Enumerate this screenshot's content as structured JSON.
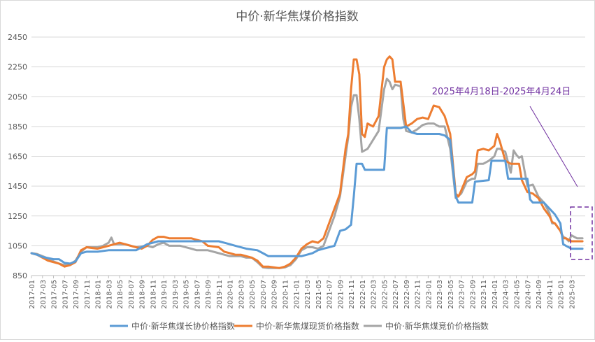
{
  "chart_data": {
    "type": "line",
    "title": "中价·新华焦煤价格指数",
    "xlabel": "",
    "ylabel": "",
    "ylim": [
      850,
      2450
    ],
    "yticks": [
      850,
      1050,
      1250,
      1450,
      1650,
      1850,
      2050,
      2250,
      2450
    ],
    "x_tick_labels": [
      "2017-01",
      "2017-03",
      "2017-05",
      "2017-07",
      "2017-09",
      "2017-11",
      "2018-01",
      "2018-03",
      "2018-05",
      "2018-07",
      "2018-09",
      "2018-11",
      "2019-01",
      "2019-03",
      "2019-05",
      "2019-07",
      "2019-09",
      "2019-11",
      "2020-01",
      "2020-03",
      "2020-05",
      "2020-07",
      "2020-09",
      "2020-11",
      "2021-01",
      "2021-03",
      "2021-05",
      "2021-07",
      "2021-09",
      "2021-11",
      "2022-01",
      "2022-03",
      "2022-05",
      "2022-07",
      "2022-09",
      "2022-11",
      "2023-01",
      "2023-03",
      "2023-05",
      "2023-07",
      "2023-09",
      "2023-11",
      "2024-01",
      "2024-03",
      "2024-05",
      "2024-07",
      "2024-09",
      "2024-11",
      "2025-01",
      "2025-03"
    ],
    "x_unit": "months since 2017-01",
    "x_max": 100.5,
    "grid": "horizontal",
    "legend_position": "bottom",
    "annotation": {
      "text": "2025年4月18日-2025年4月24日",
      "color": "#7030a0"
    },
    "series": [
      {
        "name": "中价·新华焦煤长协价格指数",
        "color": "#5b9bd5",
        "points": [
          [
            0,
            1000
          ],
          [
            1,
            990
          ],
          [
            2,
            975
          ],
          [
            4,
            960
          ],
          [
            5,
            960
          ],
          [
            6,
            935
          ],
          [
            7,
            930
          ],
          [
            8,
            945
          ],
          [
            9,
            1000
          ],
          [
            10,
            1010
          ],
          [
            12,
            1010
          ],
          [
            14,
            1020
          ],
          [
            18,
            1020
          ],
          [
            19,
            1020
          ],
          [
            20,
            1040
          ],
          [
            21,
            1060
          ],
          [
            23,
            1080
          ],
          [
            26,
            1080
          ],
          [
            30,
            1080
          ],
          [
            34,
            1080
          ],
          [
            35,
            1070
          ],
          [
            36,
            1060
          ],
          [
            37,
            1050
          ],
          [
            39,
            1030
          ],
          [
            41,
            1020
          ],
          [
            42,
            1000
          ],
          [
            43,
            980
          ],
          [
            47,
            980
          ],
          [
            49,
            980
          ],
          [
            50,
            990
          ],
          [
            51,
            1000
          ],
          [
            52,
            1020
          ],
          [
            53,
            1030
          ],
          [
            54,
            1040
          ],
          [
            55,
            1050
          ],
          [
            56,
            1150
          ],
          [
            57,
            1160
          ],
          [
            58,
            1190
          ],
          [
            58.5,
            1380
          ],
          [
            59,
            1600
          ],
          [
            60,
            1600
          ],
          [
            60.5,
            1560
          ],
          [
            62,
            1560
          ],
          [
            64,
            1560
          ],
          [
            64.5,
            1840
          ],
          [
            67,
            1840
          ],
          [
            68,
            1850
          ],
          [
            69,
            1810
          ],
          [
            70,
            1800
          ],
          [
            74,
            1800
          ],
          [
            75,
            1790
          ],
          [
            76,
            1760
          ],
          [
            77,
            1380
          ],
          [
            77.5,
            1340
          ],
          [
            80,
            1340
          ],
          [
            80.5,
            1480
          ],
          [
            83,
            1490
          ],
          [
            83.5,
            1620
          ],
          [
            86,
            1620
          ],
          [
            86.5,
            1500
          ],
          [
            90,
            1500
          ],
          [
            90.5,
            1360
          ],
          [
            91,
            1340
          ],
          [
            92,
            1340
          ],
          [
            93,
            1340
          ],
          [
            94,
            1300
          ],
          [
            95,
            1260
          ],
          [
            96,
            1200
          ],
          [
            96.5,
            1060
          ],
          [
            97,
            1050
          ],
          [
            97.5,
            1040
          ],
          [
            98,
            1030
          ],
          [
            99,
            1030
          ],
          [
            100,
            1030
          ]
        ]
      },
      {
        "name": "中价·新华焦煤现货价格指数",
        "color": "#ed7d31",
        "points": [
          [
            0,
            1000
          ],
          [
            1,
            990
          ],
          [
            2,
            970
          ],
          [
            3,
            950
          ],
          [
            4,
            940
          ],
          [
            5,
            930
          ],
          [
            6,
            910
          ],
          [
            7,
            920
          ],
          [
            8,
            940
          ],
          [
            9,
            1020
          ],
          [
            10,
            1040
          ],
          [
            12,
            1030
          ],
          [
            13,
            1040
          ],
          [
            14,
            1050
          ],
          [
            15,
            1060
          ],
          [
            16,
            1070
          ],
          [
            17,
            1060
          ],
          [
            18,
            1050
          ],
          [
            19,
            1040
          ],
          [
            20,
            1030
          ],
          [
            21,
            1050
          ],
          [
            22,
            1090
          ],
          [
            23,
            1110
          ],
          [
            24,
            1110
          ],
          [
            25,
            1100
          ],
          [
            27,
            1100
          ],
          [
            29,
            1100
          ],
          [
            30,
            1090
          ],
          [
            31,
            1080
          ],
          [
            32,
            1050
          ],
          [
            34,
            1040
          ],
          [
            35,
            1010
          ],
          [
            36,
            1000
          ],
          [
            37,
            990
          ],
          [
            38,
            990
          ],
          [
            39,
            980
          ],
          [
            40,
            970
          ],
          [
            41,
            950
          ],
          [
            42,
            910
          ],
          [
            43,
            910
          ],
          [
            45,
            900
          ],
          [
            46,
            910
          ],
          [
            47,
            930
          ],
          [
            48,
            970
          ],
          [
            49,
            1030
          ],
          [
            50,
            1060
          ],
          [
            51,
            1080
          ],
          [
            52,
            1070
          ],
          [
            53,
            1100
          ],
          [
            54,
            1200
          ],
          [
            55,
            1300
          ],
          [
            56,
            1400
          ],
          [
            57,
            1700
          ],
          [
            57.5,
            1800
          ],
          [
            58,
            2100
          ],
          [
            58.5,
            2300
          ],
          [
            59,
            2300
          ],
          [
            59.5,
            2200
          ],
          [
            60,
            1800
          ],
          [
            60.5,
            1780
          ],
          [
            61,
            1870
          ],
          [
            62,
            1850
          ],
          [
            63,
            1920
          ],
          [
            64,
            2250
          ],
          [
            64.5,
            2300
          ],
          [
            65,
            2320
          ],
          [
            65.5,
            2300
          ],
          [
            66,
            2150
          ],
          [
            67,
            2150
          ],
          [
            68,
            1850
          ],
          [
            69,
            1870
          ],
          [
            70,
            1900
          ],
          [
            71,
            1910
          ],
          [
            72,
            1900
          ],
          [
            73,
            1990
          ],
          [
            74,
            1980
          ],
          [
            75,
            1920
          ],
          [
            76,
            1800
          ],
          [
            77,
            1400
          ],
          [
            77.5,
            1380
          ],
          [
            78,
            1420
          ],
          [
            79,
            1510
          ],
          [
            80,
            1530
          ],
          [
            80.5,
            1550
          ],
          [
            81,
            1690
          ],
          [
            82,
            1700
          ],
          [
            83,
            1690
          ],
          [
            84,
            1720
          ],
          [
            84.5,
            1800
          ],
          [
            85,
            1750
          ],
          [
            86,
            1620
          ],
          [
            87,
            1600
          ],
          [
            88,
            1600
          ],
          [
            88.5,
            1600
          ],
          [
            89,
            1490
          ],
          [
            90,
            1410
          ],
          [
            91,
            1400
          ],
          [
            92,
            1370
          ],
          [
            93,
            1300
          ],
          [
            94,
            1250
          ],
          [
            94.5,
            1210
          ],
          [
            95,
            1200
          ],
          [
            96,
            1150
          ],
          [
            96.5,
            1100
          ],
          [
            97,
            1100
          ],
          [
            98,
            1080
          ],
          [
            99,
            1080
          ],
          [
            100,
            1080
          ]
        ]
      },
      {
        "name": "中价·新华焦煤竞价价格指数",
        "color": "#a5a5a5",
        "points": [
          [
            0,
            1000
          ],
          [
            1,
            995
          ],
          [
            2,
            980
          ],
          [
            3,
            965
          ],
          [
            4,
            945
          ],
          [
            5,
            930
          ],
          [
            6,
            920
          ],
          [
            7,
            925
          ],
          [
            8,
            950
          ],
          [
            9,
            1010
          ],
          [
            10,
            1040
          ],
          [
            12,
            1040
          ],
          [
            13,
            1050
          ],
          [
            14,
            1070
          ],
          [
            14.5,
            1105
          ],
          [
            15,
            1060
          ],
          [
            16,
            1060
          ],
          [
            17,
            1060
          ],
          [
            19,
            1040
          ],
          [
            21,
            1050
          ],
          [
            22,
            1040
          ],
          [
            23,
            1060
          ],
          [
            24,
            1070
          ],
          [
            25,
            1050
          ],
          [
            27,
            1050
          ],
          [
            29,
            1030
          ],
          [
            30,
            1020
          ],
          [
            32,
            1020
          ],
          [
            34,
            1000
          ],
          [
            35,
            990
          ],
          [
            36,
            980
          ],
          [
            38,
            980
          ],
          [
            39,
            970
          ],
          [
            40,
            970
          ],
          [
            41,
            940
          ],
          [
            42,
            905
          ],
          [
            43,
            900
          ],
          [
            45,
            900
          ],
          [
            46,
            905
          ],
          [
            47,
            920
          ],
          [
            48,
            960
          ],
          [
            49,
            1020
          ],
          [
            50,
            1040
          ],
          [
            51,
            1040
          ],
          [
            52,
            1030
          ],
          [
            53,
            1050
          ],
          [
            54,
            1150
          ],
          [
            55,
            1250
          ],
          [
            56,
            1380
          ],
          [
            57,
            1650
          ],
          [
            57.5,
            1780
          ],
          [
            58,
            1980
          ],
          [
            58.5,
            2060
          ],
          [
            59,
            2060
          ],
          [
            59.5,
            1900
          ],
          [
            60,
            1680
          ],
          [
            61,
            1700
          ],
          [
            62,
            1760
          ],
          [
            63,
            1820
          ],
          [
            64,
            2100
          ],
          [
            64.5,
            2170
          ],
          [
            65,
            2150
          ],
          [
            65.5,
            2100
          ],
          [
            66,
            2130
          ],
          [
            67,
            2120
          ],
          [
            67.5,
            1900
          ],
          [
            68,
            1820
          ],
          [
            69,
            1810
          ],
          [
            70,
            1830
          ],
          [
            71,
            1860
          ],
          [
            72,
            1870
          ],
          [
            73,
            1870
          ],
          [
            74,
            1850
          ],
          [
            75,
            1850
          ],
          [
            76,
            1700
          ],
          [
            77,
            1370
          ],
          [
            78,
            1400
          ],
          [
            79,
            1480
          ],
          [
            80,
            1500
          ],
          [
            80.5,
            1500
          ],
          [
            81,
            1600
          ],
          [
            82,
            1600
          ],
          [
            83,
            1620
          ],
          [
            84,
            1650
          ],
          [
            84.5,
            1700
          ],
          [
            85,
            1700
          ],
          [
            86,
            1680
          ],
          [
            87,
            1540
          ],
          [
            87.5,
            1690
          ],
          [
            88,
            1660
          ],
          [
            88.5,
            1640
          ],
          [
            89,
            1650
          ],
          [
            90,
            1450
          ],
          [
            91,
            1460
          ],
          [
            92,
            1380
          ],
          [
            93,
            1340
          ],
          [
            94,
            1270
          ],
          [
            94.5,
            1200
          ],
          [
            95,
            1200
          ],
          [
            96,
            1150
          ],
          [
            96.5,
            1110
          ],
          [
            97,
            1100
          ],
          [
            97.5,
            1080
          ],
          [
            98,
            1120
          ],
          [
            99,
            1100
          ],
          [
            100,
            1100
          ]
        ]
      }
    ]
  }
}
